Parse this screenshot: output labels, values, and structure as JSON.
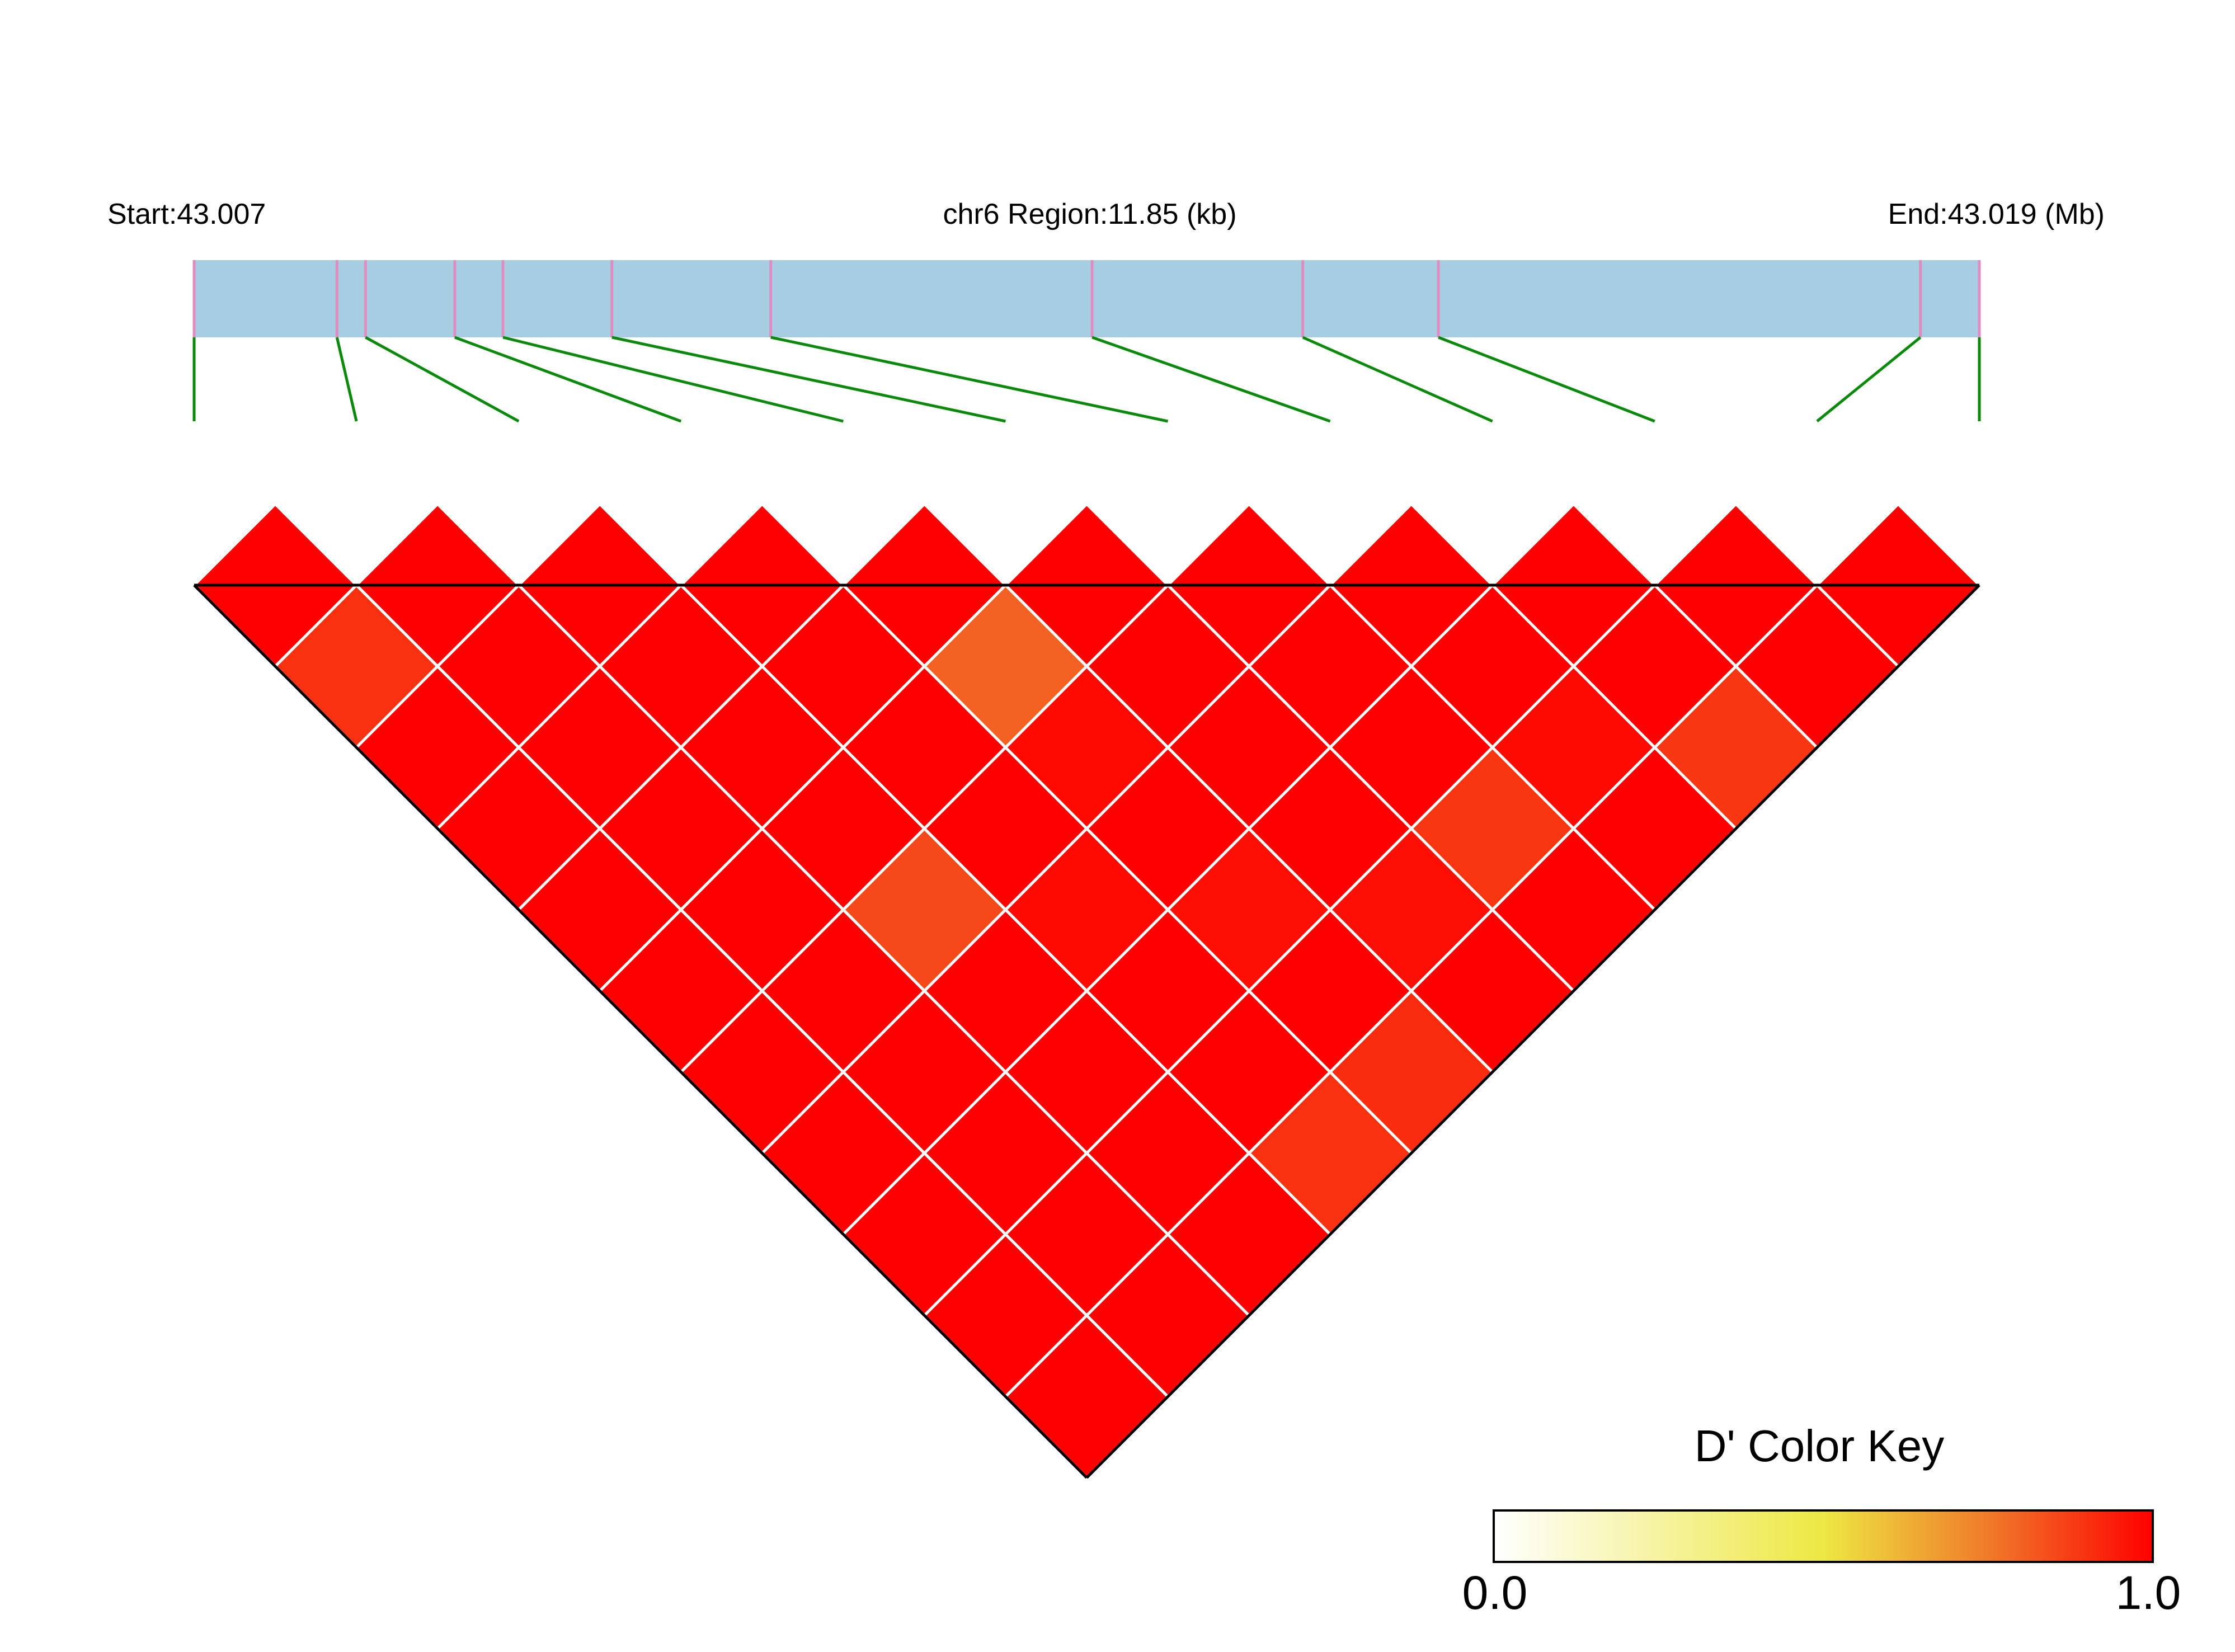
{
  "header": {
    "start_label": "Start:43.007",
    "region_label": "chr6 Region:11.85 (kb)",
    "end_label": "End:43.019 (Mb)"
  },
  "colors": {
    "track_fill": "#a6cde1",
    "snp_tick": "#e18cc0",
    "connector": "#0a8a0a",
    "grid_line": "#ffffff",
    "outline": "#000000"
  },
  "chart_data": {
    "type": "heatmap",
    "chromosome": "chr6",
    "region_start_mb": 43.007,
    "region_end_mb": 43.019,
    "region_length_kb": 11.85,
    "snp_count": 12,
    "snp_relative_positions": [
      0.0,
      0.08,
      0.096,
      0.146,
      0.173,
      0.234,
      0.323,
      0.503,
      0.621,
      0.697,
      0.967,
      1.0
    ],
    "dprime_matrix": [
      [
        null,
        1.0,
        0.9,
        1.0,
        1.0,
        1.0,
        1.0,
        1.0,
        1.0,
        1.0,
        1.0,
        1.0
      ],
      [
        null,
        null,
        1.0,
        1.0,
        1.0,
        1.0,
        1.0,
        1.0,
        1.0,
        1.0,
        1.0,
        1.0
      ],
      [
        null,
        null,
        null,
        1.0,
        1.0,
        1.0,
        1.0,
        0.85,
        1.0,
        1.0,
        1.0,
        1.0
      ],
      [
        null,
        null,
        null,
        null,
        1.0,
        1.0,
        1.0,
        1.0,
        0.98,
        1.0,
        1.0,
        0.9
      ],
      [
        null,
        null,
        null,
        null,
        null,
        1.0,
        0.8,
        0.98,
        1.0,
        0.97,
        1.0,
        0.91
      ],
      [
        null,
        null,
        null,
        null,
        null,
        null,
        1.0,
        1.0,
        1.0,
        1.0,
        0.97,
        1.0
      ],
      [
        null,
        null,
        null,
        null,
        null,
        null,
        null,
        1.0,
        1.0,
        1.0,
        0.89,
        1.0
      ],
      [
        null,
        null,
        null,
        null,
        null,
        null,
        null,
        null,
        1.0,
        1.0,
        0.98,
        1.0
      ],
      [
        null,
        null,
        null,
        null,
        null,
        null,
        null,
        null,
        null,
        1.0,
        1.0,
        0.89
      ],
      [
        null,
        null,
        null,
        null,
        null,
        null,
        null,
        null,
        null,
        null,
        1.0,
        1.0
      ],
      [
        null,
        null,
        null,
        null,
        null,
        null,
        null,
        null,
        null,
        null,
        null,
        1.0
      ]
    ],
    "legend": {
      "title": "D' Color Key",
      "min_label": "0.0",
      "max_label": "1.0",
      "range": [
        0.0,
        1.0
      ],
      "gradient_stops": [
        {
          "value": 0.0,
          "color": "#ffffff"
        },
        {
          "value": 0.5,
          "color": "#ede843"
        },
        {
          "value": 0.75,
          "color": "#f07a2a"
        },
        {
          "value": 1.0,
          "color": "#ff0000"
        }
      ],
      "placement": "bottom-right"
    }
  }
}
